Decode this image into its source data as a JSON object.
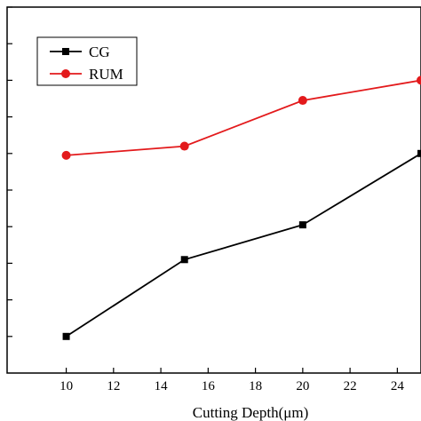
{
  "chart_data": {
    "type": "line",
    "xlabel": "Cutting Depth(μm)",
    "ylabel": "",
    "title": "",
    "xlim": [
      7.5,
      25
    ],
    "ylim": [
      0,
      10
    ],
    "xticks": [
      10,
      12,
      14,
      16,
      18,
      20,
      22,
      24
    ],
    "yticks": [
      1,
      2,
      3,
      4,
      5,
      6,
      7,
      8,
      9,
      10
    ],
    "grid": false,
    "legend_position": "top-left",
    "series": [
      {
        "name": "CG",
        "color": "#000000",
        "marker": "square",
        "x": [
          10,
          15,
          20,
          25
        ],
        "y": [
          1.0,
          3.1,
          4.05,
          6.0
        ]
      },
      {
        "name": "RUM",
        "color": "#e31a1c",
        "marker": "circle",
        "x": [
          10,
          15,
          20,
          25
        ],
        "y": [
          5.95,
          6.2,
          7.45,
          8.0
        ]
      }
    ]
  }
}
